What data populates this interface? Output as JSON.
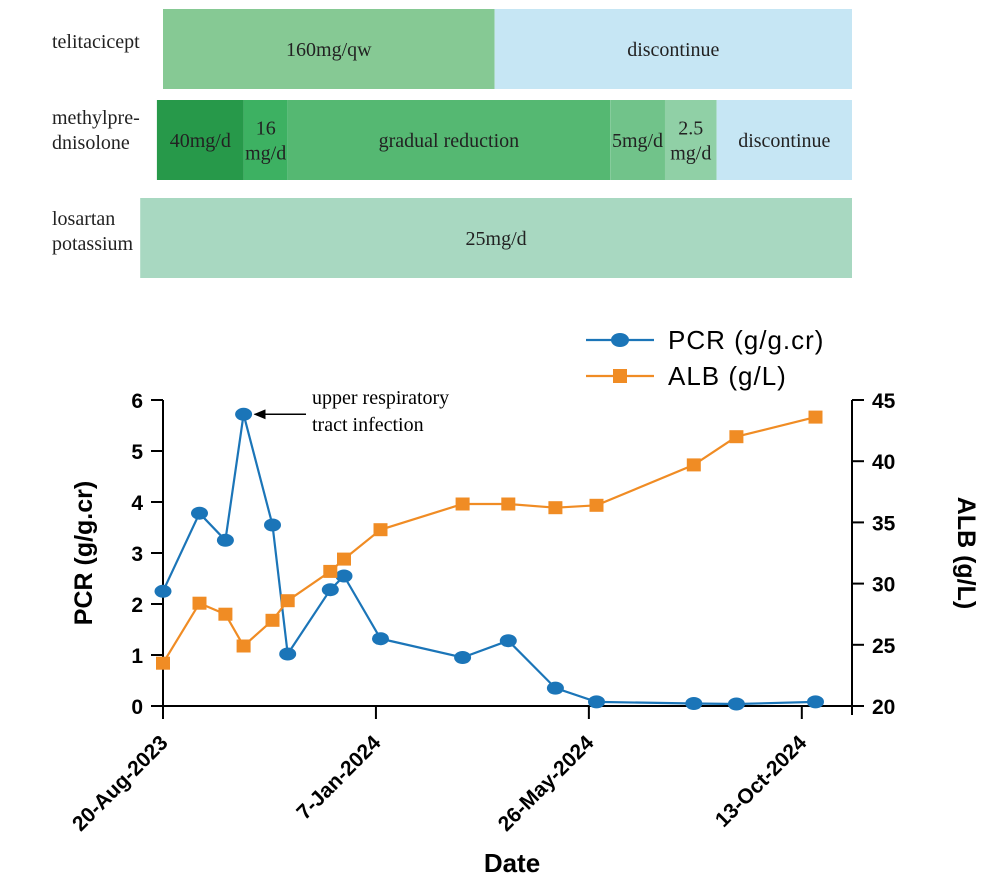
{
  "treatment_timeline": {
    "rows": [
      {
        "drug_lines": [
          "telitacicept"
        ],
        "segments": [
          {
            "label": [
              "160mg/qw"
            ],
            "color": "#86c994",
            "start": "2023-08-20",
            "end": "2024-03-25"
          },
          {
            "label": [
              "discontinue"
            ],
            "color": "#c6e6f4",
            "start": "2024-03-25",
            "end": "2024-11-15"
          }
        ]
      },
      {
        "drug_lines": [
          "methylpre-",
          "dnisolone"
        ],
        "segments": [
          {
            "label": [
              "40mg/d"
            ],
            "color": "#27994a",
            "start": "2023-08-16",
            "end": "2023-10-12"
          },
          {
            "label": [
              "16",
              "mg/d"
            ],
            "color": "#3db162",
            "start": "2023-10-12",
            "end": "2023-11-10"
          },
          {
            "label": [
              "gradual reduction"
            ],
            "color": "#55b872",
            "start": "2023-11-10",
            "end": "2024-06-09"
          },
          {
            "label": [
              "5mg/d"
            ],
            "color": "#71c38a",
            "start": "2024-06-09",
            "end": "2024-07-15"
          },
          {
            "label": [
              "2.5",
              "mg/d"
            ],
            "color": "#90d0a6",
            "start": "2024-07-15",
            "end": "2024-08-18"
          },
          {
            "label": [
              "discontinue"
            ],
            "color": "#c6e6f4",
            "start": "2024-08-18",
            "end": "2024-11-15"
          }
        ]
      },
      {
        "drug_lines": [
          "losartan",
          "potassium"
        ],
        "segments": [
          {
            "label": [
              "25mg/d"
            ],
            "color": "#a8d8c1",
            "start": "2023-08-05",
            "end": "2024-11-15"
          }
        ]
      }
    ]
  },
  "chart_data": {
    "type": "line",
    "xlabel": "Date",
    "ylabel_left": "PCR (g/g.cr)",
    "ylabel_right": "ALB (g/L)",
    "x_range": [
      "2023-08-20",
      "2024-11-15"
    ],
    "x_ticks": [
      {
        "date": "2023-08-20",
        "label": "20-Aug-2023"
      },
      {
        "date": "2024-01-07",
        "label": "7-Jan-2024"
      },
      {
        "date": "2024-05-26",
        "label": "26-May-2024"
      },
      {
        "date": "2024-10-13",
        "label": "13-Oct-2024"
      }
    ],
    "ylim_left": [
      0,
      6
    ],
    "yticks_left": [
      0,
      1,
      2,
      3,
      4,
      5,
      6
    ],
    "ylim_right": [
      20,
      45
    ],
    "yticks_right": [
      20,
      25,
      30,
      35,
      40,
      45
    ],
    "grid": false,
    "legend_position": "top-right",
    "series": [
      {
        "name": "PCR (g/g.cr)",
        "axis": "left",
        "color": "#1b75b8",
        "marker": "circle",
        "points": [
          {
            "x": "2023-08-20",
            "y": 2.25
          },
          {
            "x": "2023-09-13",
            "y": 3.78
          },
          {
            "x": "2023-09-30",
            "y": 3.25
          },
          {
            "x": "2023-10-12",
            "y": 5.72
          },
          {
            "x": "2023-10-31",
            "y": 3.55
          },
          {
            "x": "2023-11-10",
            "y": 1.02
          },
          {
            "x": "2023-12-08",
            "y": 2.28
          },
          {
            "x": "2023-12-17",
            "y": 2.55
          },
          {
            "x": "2024-01-10",
            "y": 1.32
          },
          {
            "x": "2024-03-04",
            "y": 0.95
          },
          {
            "x": "2024-04-03",
            "y": 1.28
          },
          {
            "x": "2024-05-04",
            "y": 0.35
          },
          {
            "x": "2024-05-31",
            "y": 0.08
          },
          {
            "x": "2024-08-03",
            "y": 0.05
          },
          {
            "x": "2024-08-31",
            "y": 0.04
          },
          {
            "x": "2024-10-22",
            "y": 0.08
          }
        ]
      },
      {
        "name": "ALB (g/L)",
        "axis": "right",
        "color": "#f08c24",
        "marker": "square",
        "points": [
          {
            "x": "2023-08-20",
            "y": 23.5
          },
          {
            "x": "2023-09-13",
            "y": 28.4
          },
          {
            "x": "2023-09-30",
            "y": 27.5
          },
          {
            "x": "2023-10-12",
            "y": 24.9
          },
          {
            "x": "2023-10-31",
            "y": 27.0
          },
          {
            "x": "2023-11-10",
            "y": 28.6
          },
          {
            "x": "2023-12-08",
            "y": 31.0
          },
          {
            "x": "2023-12-17",
            "y": 32.0
          },
          {
            "x": "2024-01-10",
            "y": 34.4
          },
          {
            "x": "2024-03-04",
            "y": 36.5
          },
          {
            "x": "2024-04-03",
            "y": 36.5
          },
          {
            "x": "2024-05-04",
            "y": 36.2
          },
          {
            "x": "2024-05-31",
            "y": 36.4
          },
          {
            "x": "2024-08-03",
            "y": 39.7
          },
          {
            "x": "2024-08-31",
            "y": 42.0
          },
          {
            "x": "2024-10-22",
            "y": 43.6
          }
        ]
      }
    ],
    "annotations": [
      {
        "text_lines": [
          "upper respiratory",
          "tract infection"
        ],
        "target": {
          "series": 0,
          "point": 3
        }
      }
    ]
  }
}
